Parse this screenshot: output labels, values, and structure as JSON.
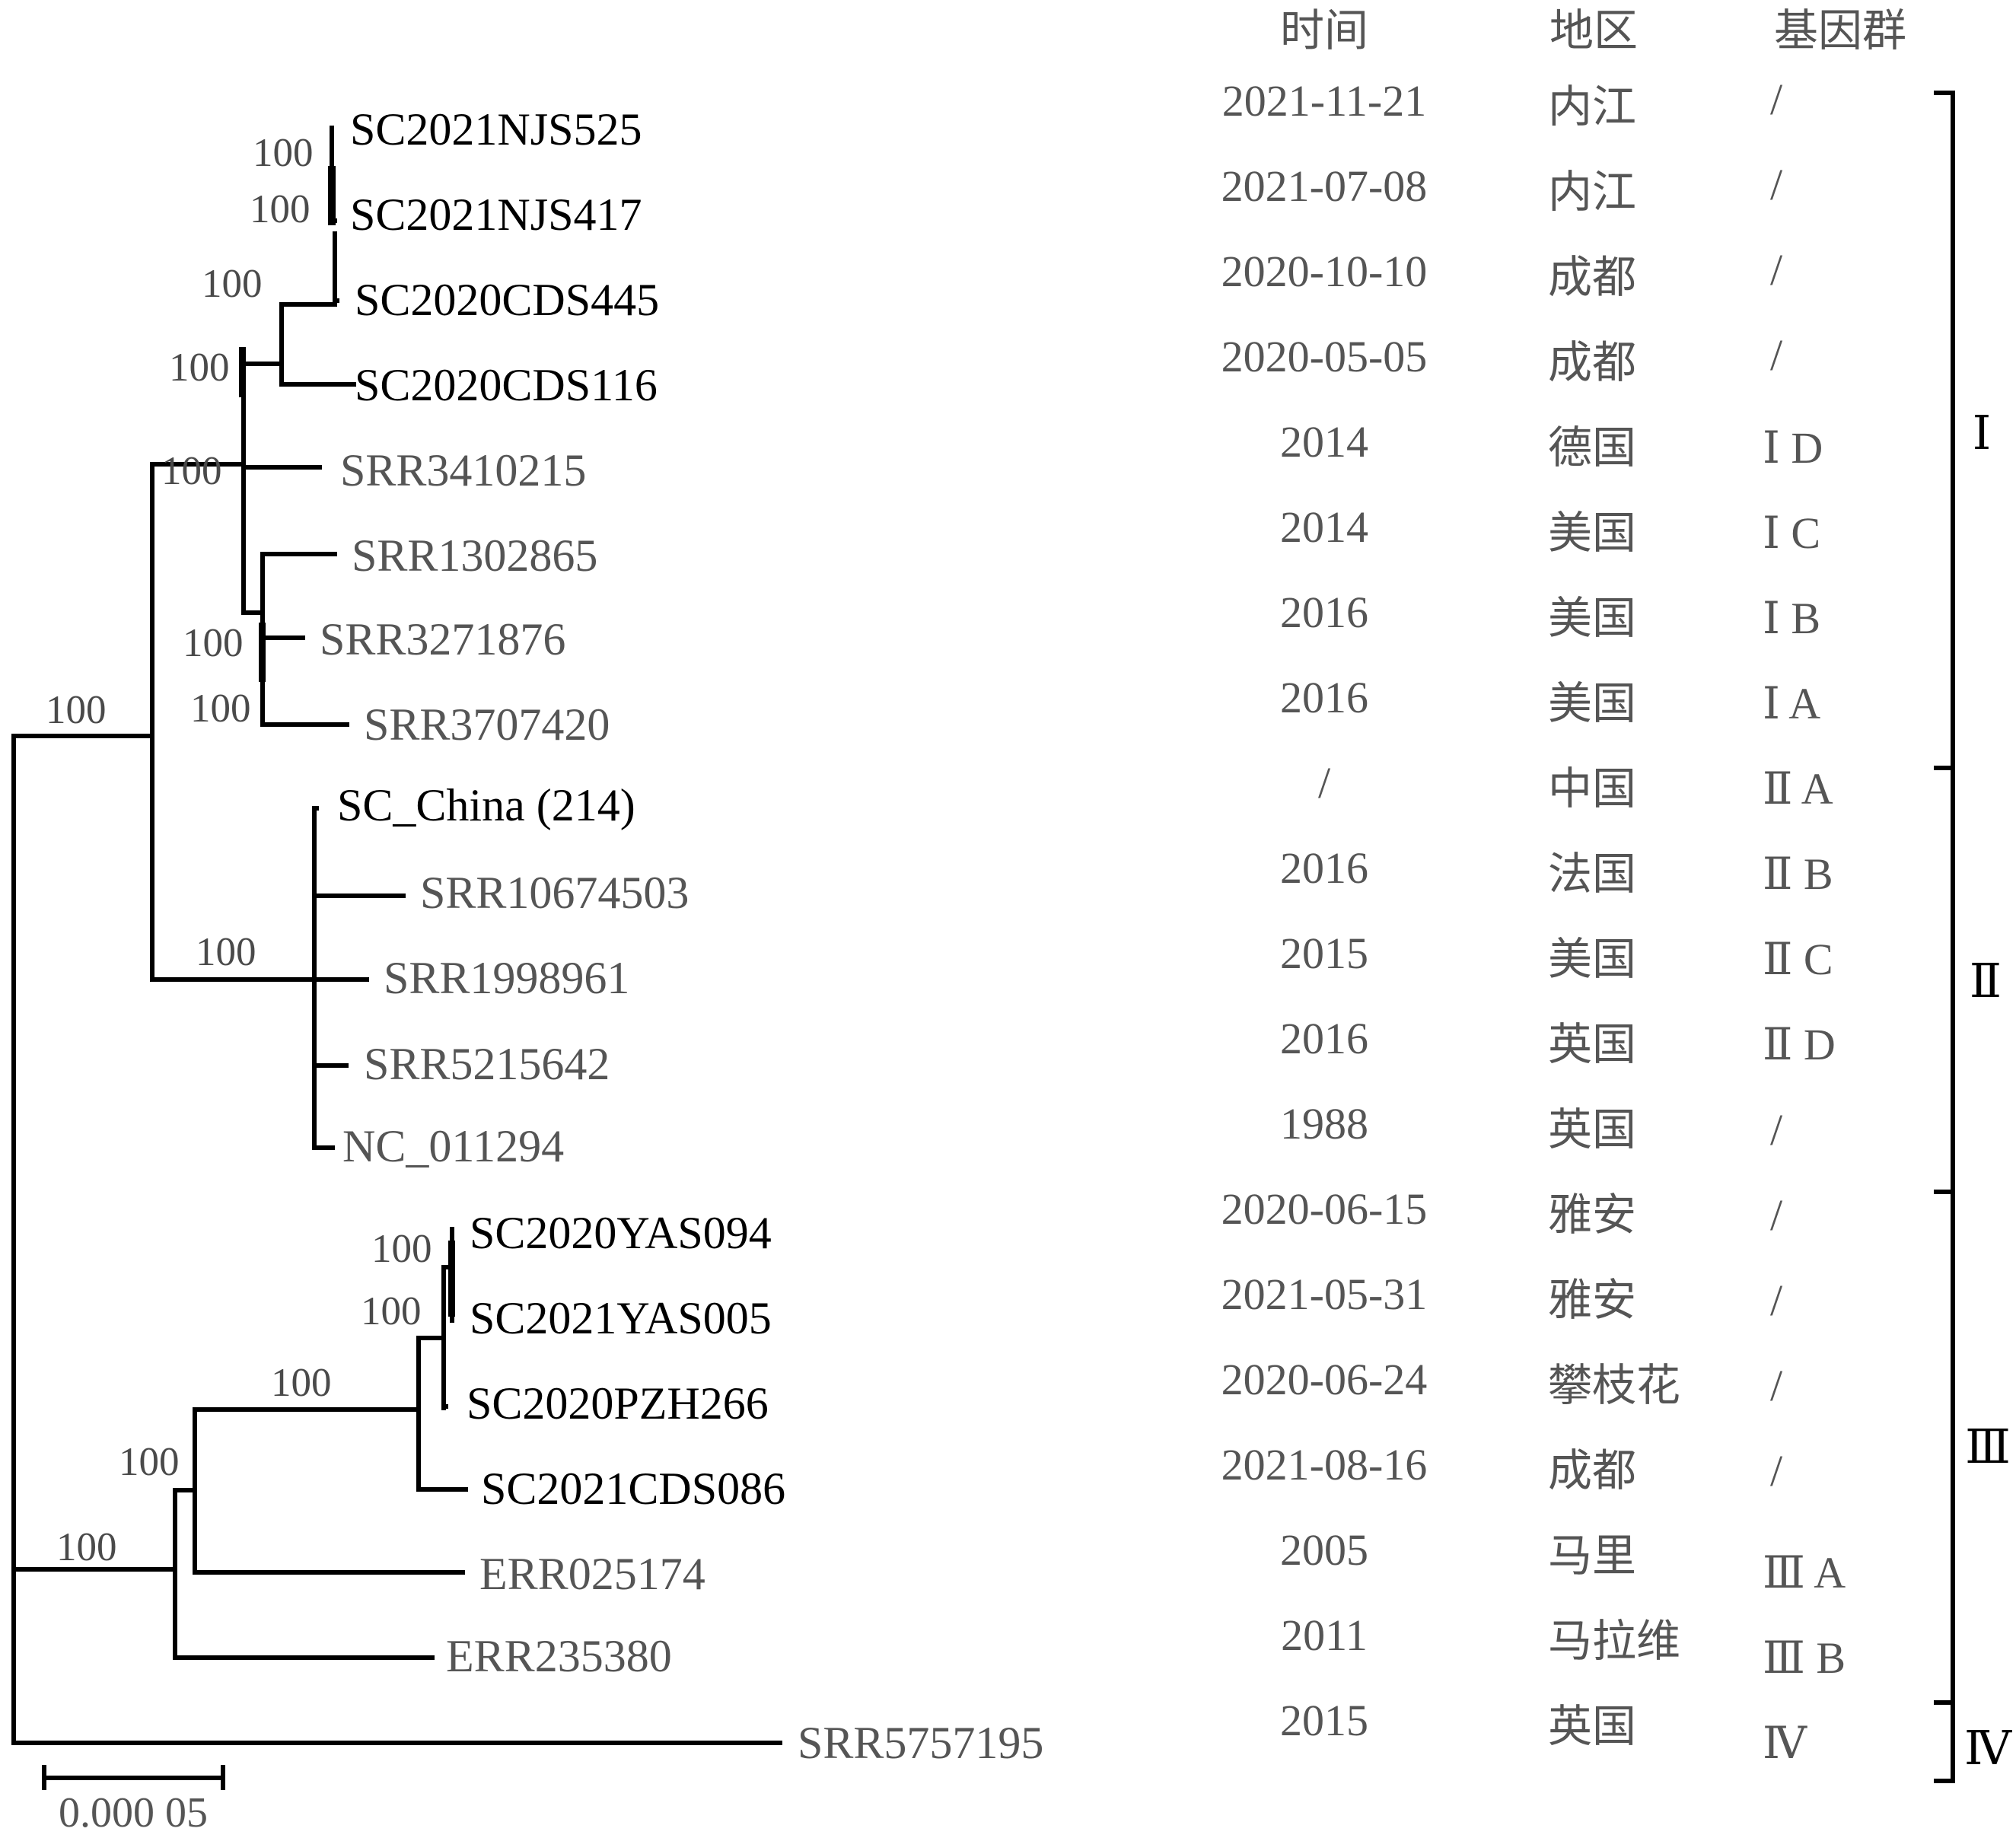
{
  "headers": {
    "time": "时间",
    "region": "地区",
    "group": "基因群"
  },
  "taxa": [
    {
      "name": "SC2021NJS525",
      "new": true,
      "time": "2021-11-21",
      "region": "内江",
      "group": "/"
    },
    {
      "name": "SC2021NJS417",
      "new": true,
      "time": "2021-07-08",
      "region": "内江",
      "group": "/"
    },
    {
      "name": "SC2020CDS445",
      "new": true,
      "time": "2020-10-10",
      "region": "成都",
      "group": "/"
    },
    {
      "name": "SC2020CDS116",
      "new": true,
      "time": "2020-05-05",
      "region": "成都",
      "group": "/"
    },
    {
      "name": "SRR3410215",
      "new": false,
      "time": "2014",
      "region": "德国",
      "group": "Ⅰ D"
    },
    {
      "name": "SRR1302865",
      "new": false,
      "time": "2014",
      "region": "美国",
      "group": "Ⅰ C"
    },
    {
      "name": "SRR3271876",
      "new": false,
      "time": "2016",
      "region": "美国",
      "group": "Ⅰ B"
    },
    {
      "name": "SRR3707420",
      "new": false,
      "time": "2016",
      "region": "美国",
      "group": "Ⅰ A"
    },
    {
      "name": "SC_China (214)",
      "new": true,
      "time": "/",
      "region": "中国",
      "group": "Ⅱ A"
    },
    {
      "name": "SRR10674503",
      "new": false,
      "time": "2016",
      "region": "法国",
      "group": "Ⅱ B"
    },
    {
      "name": "SRR1998961",
      "new": false,
      "time": "2015",
      "region": "美国",
      "group": "Ⅱ C"
    },
    {
      "name": "SRR5215642",
      "new": false,
      "time": "2016",
      "region": "英国",
      "group": "Ⅱ D"
    },
    {
      "name": "NC_011294",
      "new": false,
      "time": "1988",
      "region": "英国",
      "group": "/"
    },
    {
      "name": "SC2020YAS094",
      "new": true,
      "time": "2020-06-15",
      "region": "雅安",
      "group": "/"
    },
    {
      "name": "SC2021YAS005",
      "new": true,
      "time": "2021-05-31",
      "region": "雅安",
      "group": "/"
    },
    {
      "name": "SC2020PZH266",
      "new": true,
      "time": "2020-06-24",
      "region": "攀枝花",
      "group": "/"
    },
    {
      "name": "SC2021CDS086",
      "new": true,
      "time": "2021-08-16",
      "region": "成都",
      "group": "/"
    },
    {
      "name": "ERR025174",
      "new": false,
      "time": "2005",
      "region": "马里",
      "group": "Ⅲ A"
    },
    {
      "name": "ERR235380",
      "new": false,
      "time": "2011",
      "region": "马拉维",
      "group": "Ⅲ B"
    },
    {
      "name": "SRR5757195",
      "new": false,
      "time": "2015",
      "region": "英国",
      "group": "Ⅳ"
    }
  ],
  "bootstrap": [
    "100",
    "100",
    "100",
    "100",
    "100",
    "100",
    "100",
    "100",
    "100",
    "100",
    "100",
    "100",
    "100",
    "100",
    "100"
  ],
  "clades": [
    "Ⅰ",
    "Ⅱ",
    "Ⅲ",
    "Ⅳ"
  ],
  "scale_bar": "0.000 05"
}
